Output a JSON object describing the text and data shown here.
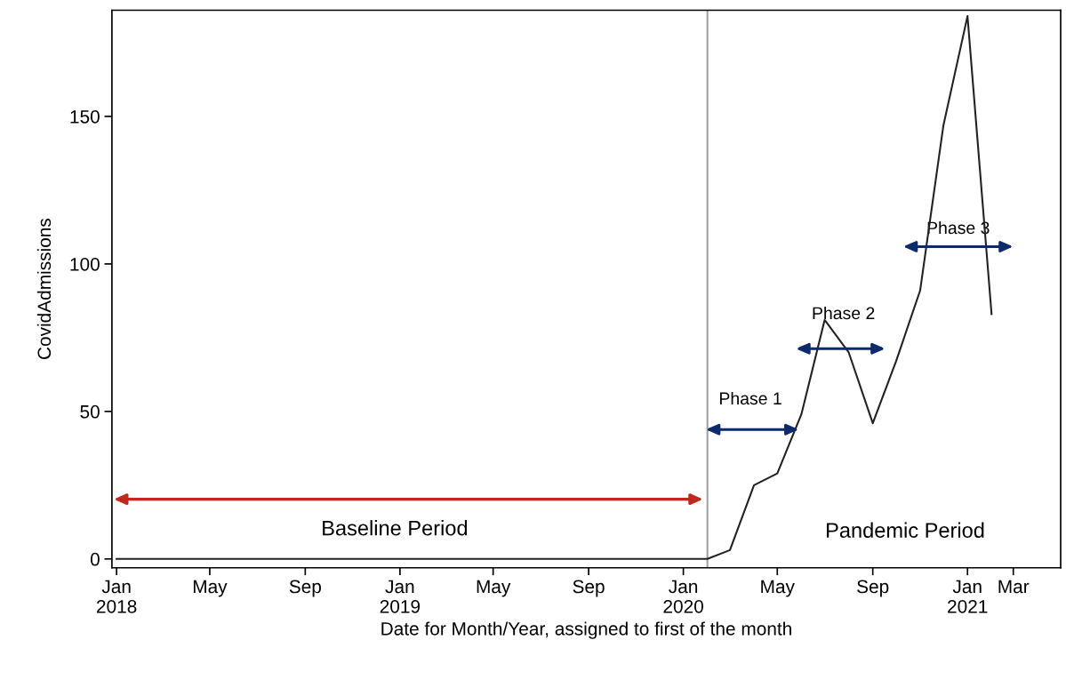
{
  "chart_data": {
    "type": "line",
    "xlabel": "Date for Month/Year, assigned to first of the month",
    "ylabel": "CovidAdmissions",
    "x": [
      "2018-01-01",
      "2018-02-01",
      "2018-03-01",
      "2018-04-01",
      "2018-05-01",
      "2018-06-01",
      "2018-07-01",
      "2018-08-01",
      "2018-09-01",
      "2018-10-01",
      "2018-11-01",
      "2018-12-01",
      "2019-01-01",
      "2019-02-01",
      "2019-03-01",
      "2019-04-01",
      "2019-05-01",
      "2019-06-01",
      "2019-07-01",
      "2019-08-01",
      "2019-09-01",
      "2019-10-01",
      "2019-11-01",
      "2019-12-01",
      "2020-01-01",
      "2020-02-01",
      "2020-03-01",
      "2020-04-01",
      "2020-05-01",
      "2020-06-01",
      "2020-07-01",
      "2020-08-01",
      "2020-09-01",
      "2020-10-01",
      "2020-11-01",
      "2020-12-01",
      "2021-01-01",
      "2021-02-01"
    ],
    "series": [
      {
        "color": "#222222",
        "values": [
          0,
          0,
          0,
          0,
          0,
          0,
          0,
          0,
          0,
          0,
          0,
          0,
          0,
          0,
          0,
          0,
          0,
          0,
          0,
          0,
          0,
          0,
          0,
          0,
          0,
          0,
          3,
          25,
          29,
          49,
          81,
          70,
          46,
          67,
          91,
          147,
          184,
          83
        ]
      }
    ],
    "xlim": [
      "2017-12-26",
      "2021-05-01"
    ],
    "xticks": [
      {
        "value": "2018-01-01",
        "label": "Jan\n2018"
      },
      {
        "value": "2018-05-01",
        "label": "May"
      },
      {
        "value": "2018-09-01",
        "label": "Sep"
      },
      {
        "value": "2019-01-01",
        "label": "Jan\n2019"
      },
      {
        "value": "2019-05-01",
        "label": "May"
      },
      {
        "value": "2019-09-01",
        "label": "Sep"
      },
      {
        "value": "2020-01-01",
        "label": "Jan\n2020"
      },
      {
        "value": "2020-05-01",
        "label": "May"
      },
      {
        "value": "2020-09-01",
        "label": "Sep"
      },
      {
        "value": "2021-01-01",
        "label": "Jan\n2021"
      },
      {
        "value": "2021-03-01",
        "label": "Mar"
      }
    ],
    "ylim": [
      -3,
      186
    ],
    "yticks": [
      0,
      50,
      100,
      150
    ],
    "ref_lines": [
      {
        "axis": "x",
        "value": "2020-02-01",
        "color": "#a0a0a0"
      }
    ],
    "annotations": [
      "Baseline Period",
      "Phase 1",
      "Phase 2",
      "Phase 3",
      "Pandemic Period"
    ],
    "grid": false,
    "marker": "none",
    "line_style": "solid"
  }
}
